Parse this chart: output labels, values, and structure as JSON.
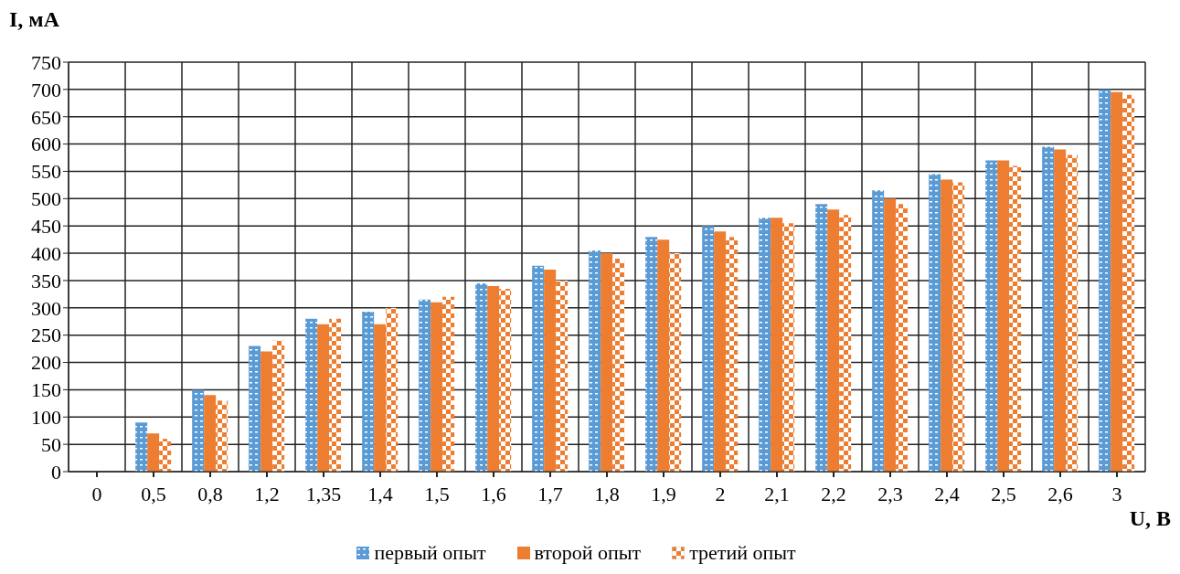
{
  "chart_data": {
    "type": "bar",
    "xlabel": "U, В",
    "ylabel": "I, мА",
    "categories": [
      "0",
      "0,5",
      "0,8",
      "1,2",
      "1,35",
      "1,4",
      "1,5",
      "1,6",
      "1,7",
      "1,8",
      "1,9",
      "2",
      "2,1",
      "2,2",
      "2,3",
      "2,4",
      "2,5",
      "2,6",
      "3"
    ],
    "series": [
      {
        "name": "первый опыт",
        "color": "#5b9bd5",
        "values": [
          0,
          90,
          150,
          230,
          280,
          293,
          315,
          345,
          377,
          405,
          430,
          450,
          465,
          490,
          515,
          545,
          570,
          595,
          700
        ]
      },
      {
        "name": "второй опыт",
        "color": "#ed7d31",
        "values": [
          0,
          70,
          140,
          220,
          270,
          270,
          310,
          340,
          370,
          400,
          425,
          440,
          465,
          480,
          500,
          535,
          570,
          590,
          695
        ]
      },
      {
        "name": "третий опыт",
        "color": "#ed7d31",
        "values": [
          0,
          60,
          130,
          240,
          280,
          300,
          320,
          335,
          350,
          390,
          400,
          430,
          455,
          470,
          490,
          530,
          560,
          580,
          690
        ]
      }
    ],
    "ylim": [
      0,
      750
    ],
    "yticks": [
      0,
      50,
      100,
      150,
      200,
      250,
      300,
      350,
      400,
      450,
      500,
      550,
      600,
      650,
      700,
      750
    ],
    "grid": true,
    "legend": "bottom"
  }
}
